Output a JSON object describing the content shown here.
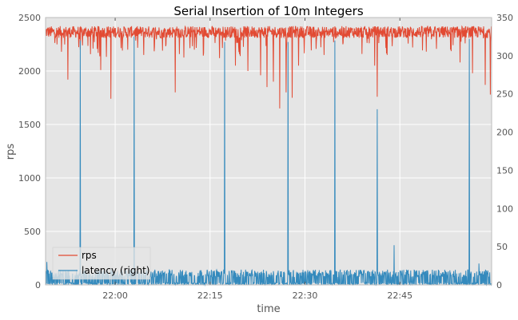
{
  "chart_data": {
    "type": "line",
    "title": "Serial Insertion of 10m Integers",
    "xlabel": "time",
    "ylabel": "rps",
    "ylabel_right": "",
    "x_ticks": [
      "22:00",
      "22:15",
      "22:30",
      "22:45"
    ],
    "x_tick_minutes": [
      0,
      15,
      30,
      45
    ],
    "x_range_minutes": [
      -11,
      59.5
    ],
    "ylim": [
      0,
      2500
    ],
    "ylim_right": [
      0,
      350
    ],
    "yticks": [
      "0",
      "500",
      "1000",
      "1500",
      "2000",
      "2500"
    ],
    "yticks_right": [
      "0",
      "50",
      "100",
      "150",
      "200",
      "250",
      "300",
      "350"
    ],
    "grid": true,
    "legend_position": "lower-left",
    "series": [
      {
        "name": "rps",
        "axis": "left",
        "color": "#E24A33",
        "typical_range": [
          2250,
          2420
        ],
        "dips": [
          {
            "t": -8.5,
            "v": 2180
          },
          {
            "t": -7.5,
            "v": 1920
          },
          {
            "t": -5.5,
            "v": 2200
          },
          {
            "t": -3.5,
            "v": 2210
          },
          {
            "t": -2.3,
            "v": 2010
          },
          {
            "t": -0.7,
            "v": 1740
          },
          {
            "t": 2.0,
            "v": 2200
          },
          {
            "t": 4.5,
            "v": 2150
          },
          {
            "t": 7.5,
            "v": 2190
          },
          {
            "t": 9.5,
            "v": 1800
          },
          {
            "t": 12.5,
            "v": 2200
          },
          {
            "t": 16.5,
            "v": 2120
          },
          {
            "t": 19.0,
            "v": 2050
          },
          {
            "t": 21.0,
            "v": 2000
          },
          {
            "t": 23.0,
            "v": 1960
          },
          {
            "t": 24.0,
            "v": 1850
          },
          {
            "t": 25.0,
            "v": 1900
          },
          {
            "t": 26.0,
            "v": 1650
          },
          {
            "t": 27.0,
            "v": 1800
          },
          {
            "t": 28.0,
            "v": 1750
          },
          {
            "t": 29.0,
            "v": 2050
          },
          {
            "t": 33.0,
            "v": 2150
          },
          {
            "t": 36.0,
            "v": 2250
          },
          {
            "t": 39.0,
            "v": 2160
          },
          {
            "t": 41.0,
            "v": 2050
          },
          {
            "t": 41.4,
            "v": 1760
          },
          {
            "t": 43.0,
            "v": 2150
          },
          {
            "t": 47.0,
            "v": 2220
          },
          {
            "t": 53.0,
            "v": 2200
          },
          {
            "t": 54.5,
            "v": 2080
          },
          {
            "t": 56.5,
            "v": 1980
          },
          {
            "t": 58.5,
            "v": 1870
          },
          {
            "t": 59.3,
            "v": 1780
          }
        ]
      },
      {
        "name": "latency (right)",
        "axis": "right",
        "color": "#348ABD",
        "typical_range": [
          0,
          20
        ],
        "spikes": [
          {
            "t": -10.8,
            "v": 30
          },
          {
            "t": -5.5,
            "v": 320
          },
          {
            "t": 3.0,
            "v": 325
          },
          {
            "t": 17.3,
            "v": 318
          },
          {
            "t": 27.3,
            "v": 318
          },
          {
            "t": 34.7,
            "v": 320
          },
          {
            "t": 41.4,
            "v": 230
          },
          {
            "t": 44.1,
            "v": 52
          },
          {
            "t": 56.0,
            "v": 322
          },
          {
            "t": 57.5,
            "v": 28
          }
        ]
      }
    ]
  }
}
